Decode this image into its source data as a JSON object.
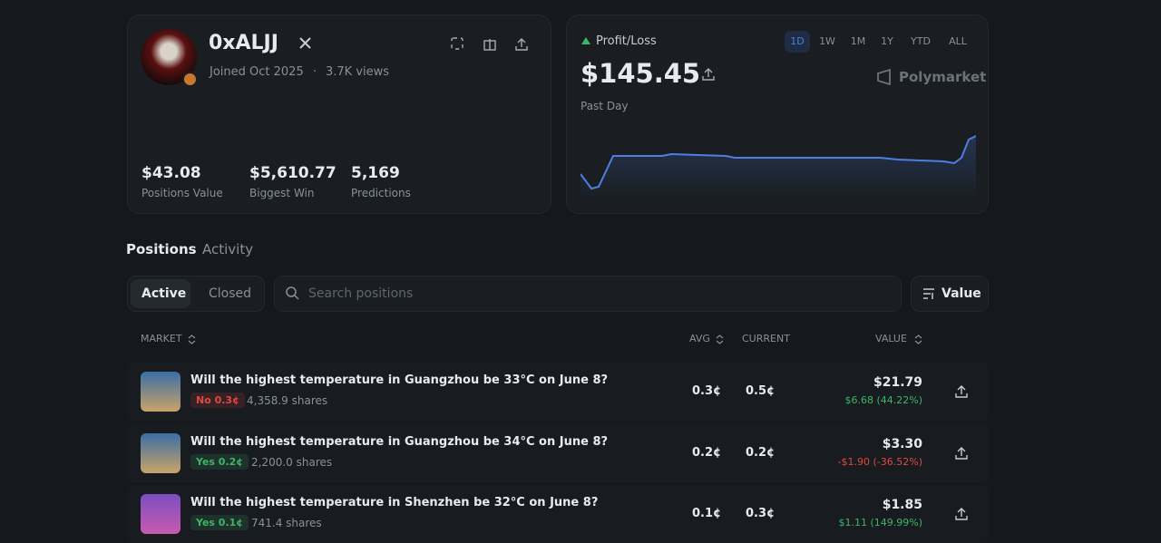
{
  "profile": {
    "name": "0xALJJ",
    "joined": "Joined Oct 2025",
    "separator": "·",
    "views": "3.7K views",
    "stats": [
      {
        "value": "$43.08",
        "label": "Positions Value"
      },
      {
        "value": "$5,610.77",
        "label": "Biggest Win"
      },
      {
        "value": "5,169",
        "label": "Predictions"
      }
    ]
  },
  "pnl": {
    "label": "Profit/Loss",
    "ranges": [
      "1D",
      "1W",
      "1M",
      "1Y",
      "YTD",
      "ALL"
    ],
    "amount": "$145.45",
    "period": "Past Day",
    "brand": "Polymarket"
  },
  "tabs": [
    "Positions",
    "Activity"
  ],
  "filters": [
    "Active",
    "Closed"
  ],
  "search_placeholder": "Search positions",
  "sort": "Value",
  "table": {
    "headers": [
      "MARKET",
      "AVG",
      "CURRENT",
      "VALUE"
    ],
    "rows": [
      {
        "title": "Will the highest temperature in Guangzhou be 33°C on June 8?",
        "outcome": "No 0.3¢",
        "shares": "4,358.9 shares",
        "avg": "0.3¢",
        "current": "0.5¢",
        "value": "$21.79",
        "change": "$6.68 (44.22%)"
      },
      {
        "title": "Will the highest temperature in Guangzhou be 34°C on June 8?",
        "outcome": "Yes 0.2¢",
        "shares": "2,200.0 shares",
        "avg": "0.2¢",
        "current": "0.2¢",
        "value": "$3.30",
        "change": "-$1.90 (-36.52%)"
      },
      {
        "title": "Will the highest temperature in Shenzhen be 32°C on June 8?",
        "outcome": "Yes 0.1¢",
        "shares": "741.4 shares",
        "avg": "0.1¢",
        "current": "0.3¢",
        "value": "$1.85",
        "change": "$1.11 (149.99%)"
      }
    ]
  }
}
